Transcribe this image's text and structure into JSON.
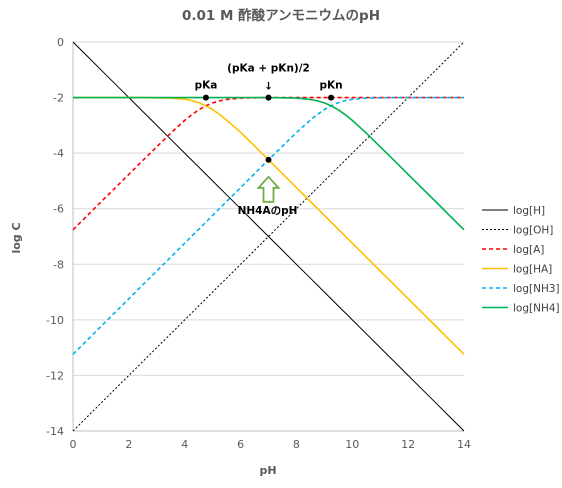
{
  "chart_data": {
    "type": "line",
    "title": "0.01 M 酢酸アンモニウムのpH",
    "xlabel": "pH",
    "ylabel": "log C",
    "xlim": [
      0,
      14
    ],
    "ylim": [
      -14,
      0
    ],
    "xticks": [
      0,
      2,
      4,
      6,
      8,
      10,
      12,
      14
    ],
    "yticks": [
      0,
      -2,
      -4,
      -6,
      -8,
      -10,
      -12,
      -14
    ],
    "xtick_labels": [
      "0",
      "2",
      "4",
      "6",
      "8",
      "10",
      "12",
      "14"
    ],
    "ytick_labels": [
      "0",
      "-2",
      "-4",
      "-6",
      "-8",
      "-10",
      "-12",
      "-14"
    ],
    "grid": "horizontal",
    "legend_position": "right",
    "x": [
      0,
      0.5,
      1,
      1.5,
      2,
      2.5,
      3,
      3.5,
      4,
      4.25,
      4.5,
      4.75,
      5,
      5.25,
      5.5,
      6,
      6.5,
      7,
      7.5,
      8,
      8.5,
      8.75,
      9,
      9.25,
      9.5,
      9.75,
      10,
      10.5,
      11,
      11.5,
      12,
      12.5,
      13,
      13.5,
      14
    ],
    "series": [
      {
        "name": "log[H]",
        "color": "#000000",
        "dash": "solid",
        "values": [
          0,
          -0.5,
          -1,
          -1.5,
          -2,
          -2.5,
          -3,
          -3.5,
          -4,
          -4.25,
          -4.5,
          -4.75,
          -5,
          -5.25,
          -5.5,
          -6,
          -6.5,
          -7,
          -7.5,
          -8,
          -8.5,
          -8.75,
          -9,
          -9.25,
          -9.5,
          -9.75,
          -10,
          -10.5,
          -11,
          -11.5,
          -12,
          -12.5,
          -13,
          -13.5,
          -14
        ]
      },
      {
        "name": "log[OH]",
        "color": "#000000",
        "dash": "dotted",
        "values": [
          -14,
          -13.5,
          -13,
          -12.5,
          -12,
          -11.5,
          -11,
          -10.5,
          -10,
          -9.75,
          -9.5,
          -9.25,
          -9,
          -8.75,
          -8.5,
          -8,
          -7.5,
          -7,
          -6.5,
          -6,
          -5.5,
          -5.25,
          -5,
          -4.75,
          -4.5,
          -4.25,
          -4,
          -3.5,
          -3,
          -2.5,
          -2,
          -1.5,
          -1,
          -0.5,
          0
        ]
      },
      {
        "name": "log[A]",
        "color": "#ff0000",
        "dash": "dashed",
        "values": [
          -6.76,
          -6.26,
          -5.76,
          -5.26,
          -4.76,
          -4.26,
          -3.77,
          -3.28,
          -2.82,
          -2.62,
          -2.44,
          -2.3,
          -2.19,
          -2.12,
          -2.07,
          -2.02,
          -2.01,
          -2.0,
          -2.0,
          -2.0,
          -2.0,
          -2.0,
          -2.0,
          -2.0,
          -2.0,
          -2.0,
          -2.0,
          -2.0,
          -2.0,
          -2.0,
          -2.0,
          -2.0,
          -2.0,
          -2.0,
          -2.0
        ]
      },
      {
        "name": "log[HA]",
        "color": "#ffc000",
        "dash": "solid",
        "values": [
          -2.0,
          -2.0,
          -2.0,
          -2.0,
          -2.0,
          -2.0,
          -2.01,
          -2.02,
          -2.06,
          -2.11,
          -2.18,
          -2.3,
          -2.43,
          -2.61,
          -2.81,
          -3.25,
          -3.74,
          -4.24,
          -4.74,
          -5.24,
          -5.74,
          -5.99,
          -6.24,
          -6.49,
          -6.74,
          -6.99,
          -7.24,
          -7.74,
          -8.24,
          -8.74,
          -9.24,
          -9.74,
          -10.24,
          -10.74,
          -11.24
        ]
      },
      {
        "name": "log[NH3]",
        "color": "#00b0f0",
        "dash": "dashed",
        "values": [
          -11.24,
          -10.74,
          -10.24,
          -9.74,
          -9.24,
          -8.74,
          -8.24,
          -7.74,
          -7.24,
          -6.99,
          -6.74,
          -6.49,
          -6.24,
          -5.99,
          -5.74,
          -5.24,
          -4.74,
          -4.24,
          -3.75,
          -3.26,
          -2.81,
          -2.61,
          -2.43,
          -2.3,
          -2.18,
          -2.11,
          -2.06,
          -2.02,
          -2.01,
          -2.0,
          -2.0,
          -2.0,
          -2.0,
          -2.0,
          -2.0
        ]
      },
      {
        "name": "log[NH4]",
        "color": "#00b050",
        "dash": "solid",
        "values": [
          -2.0,
          -2.0,
          -2.0,
          -2.0,
          -2.0,
          -2.0,
          -2.0,
          -2.0,
          -2.0,
          -2.0,
          -2.0,
          -2.0,
          -2.0,
          -2.0,
          -2.0,
          -2.0,
          -2.0,
          -2.0,
          -2.01,
          -2.02,
          -2.07,
          -2.12,
          -2.19,
          -2.3,
          -2.44,
          -2.62,
          -2.82,
          -3.28,
          -3.77,
          -4.26,
          -4.76,
          -5.26,
          -5.76,
          -6.26,
          -6.76
        ]
      }
    ],
    "annotations": [
      {
        "label": "pKa",
        "x": 4.76,
        "y": -2.0
      },
      {
        "label": "(pKa + pKn)/2",
        "x": 7.0,
        "y": -2.0
      },
      {
        "label": "pKn",
        "x": 9.24,
        "y": -2.0
      },
      {
        "label": "NH4AのpH",
        "x": 7.0,
        "y": -4.24
      }
    ],
    "arrow_glyph": "↓"
  }
}
